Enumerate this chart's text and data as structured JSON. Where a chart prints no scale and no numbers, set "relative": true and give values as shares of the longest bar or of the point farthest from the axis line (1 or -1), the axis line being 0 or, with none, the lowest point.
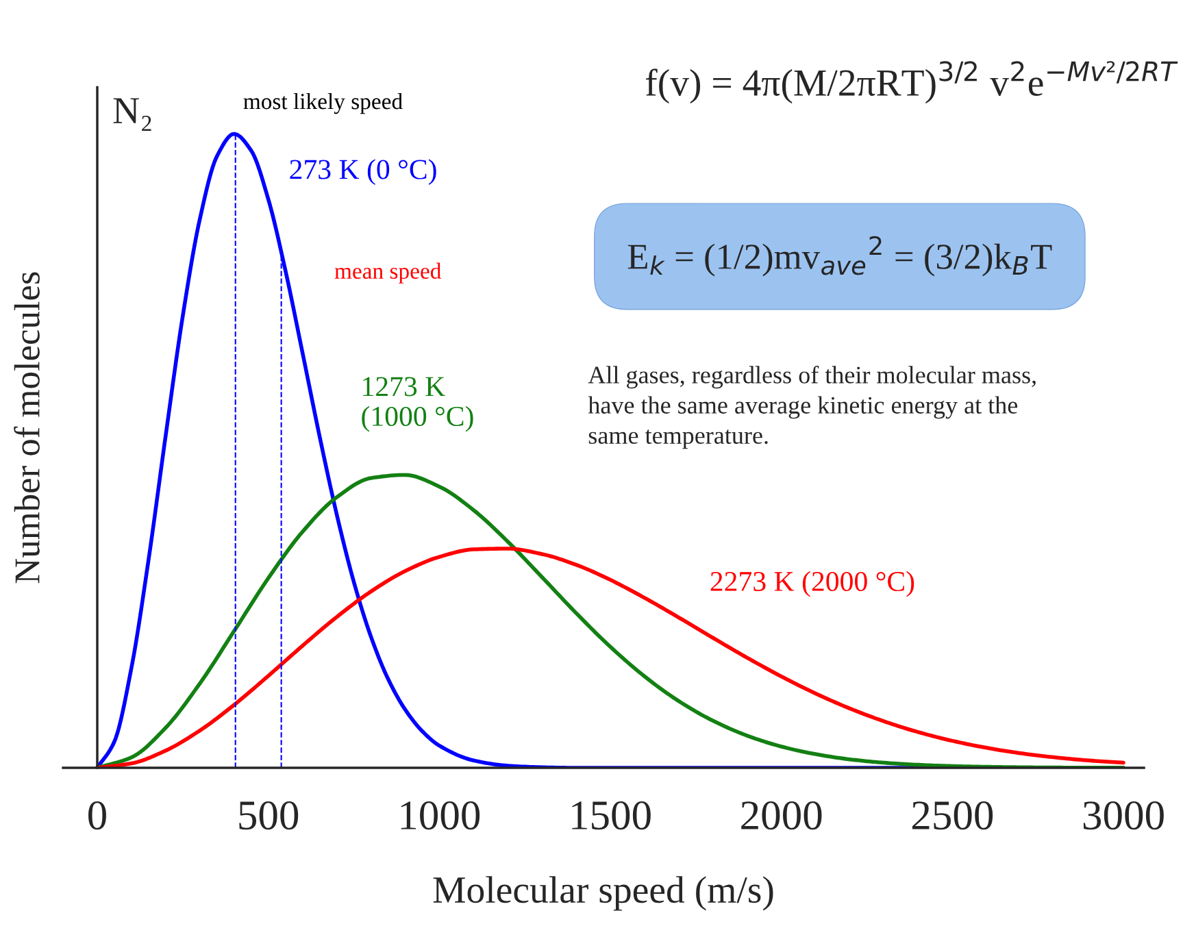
{
  "chart_data": {
    "type": "line",
    "title": "N₂",
    "xlabel": "Molecular speed (m/s)",
    "ylabel": "Number of molecules",
    "relative": true,
    "x": [
      0,
      100,
      200,
      300,
      400,
      500,
      600,
      700,
      800,
      900,
      1000,
      1100,
      1200,
      1300,
      1400,
      1500,
      1600,
      1700,
      1800,
      1900,
      2000,
      2100,
      2200,
      2300,
      2400,
      2500,
      2600,
      2700,
      2800,
      2900,
      3000
    ],
    "series": [
      {
        "name": "273 K (0 °C)",
        "color": "#0000ff",
        "x": [
          0,
          50,
          100,
          150,
          200,
          250,
          300,
          350,
          400,
          450,
          500,
          550,
          600,
          650,
          700,
          750,
          800,
          850,
          900,
          950,
          1000,
          1100,
          1200,
          1300,
          1400,
          1500,
          1600,
          1700,
          1800,
          1900,
          2000,
          2100,
          2200,
          2300,
          2400,
          2500
        ],
        "values": [
          0,
          0.0413,
          0.158,
          0.3284,
          0.524,
          0.7128,
          0.866,
          0.9649,
          1.0,
          0.9737,
          0.897,
          0.7848,
          0.655,
          0.5229,
          0.4,
          0.2934,
          0.207,
          0.1404,
          0.092,
          0.0578,
          0.035,
          0.0116,
          0.0033,
          0.0008,
          0,
          0,
          0,
          0,
          0,
          0,
          0,
          0,
          0,
          0,
          0,
          0
        ]
      },
      {
        "name": "1273 K\n(1000 °C)",
        "color": "#138013",
        "values": [
          0,
          0.0164,
          0.0632,
          0.1331,
          0.2157,
          0.2991,
          0.3723,
          0.4268,
          0.4571,
          0.462,
          0.4436,
          0.4066,
          0.3569,
          0.3009,
          0.2441,
          0.1909,
          0.1442,
          0.1052,
          0.0742,
          0.0507,
          0.0335,
          0.0215,
          0.0133,
          0.008,
          0.0047,
          0.0027,
          0.0015,
          0.0008,
          0.0004,
          0.0002,
          0.0001
        ]
      },
      {
        "name": "2273 K (2000 °C)",
        "color": "#ff0000",
        "values": [
          0,
          0.0069,
          0.0271,
          0.0588,
          0.0992,
          0.145,
          0.1925,
          0.2379,
          0.2781,
          0.3103,
          0.3327,
          0.3446,
          0.3458,
          0.3372,
          0.3203,
          0.2965,
          0.2681,
          0.2371,
          0.205,
          0.1736,
          0.1441,
          0.1172,
          0.0936,
          0.0733,
          0.0563,
          0.0425,
          0.0315,
          0.0229,
          0.0164,
          0.0115,
          0.008
        ]
      }
    ],
    "xlim": [
      -100,
      3060
    ],
    "xticks": [
      0,
      500,
      1000,
      1500,
      2000,
      2500,
      3000
    ],
    "ref_lines": [
      {
        "axis": "x",
        "value": 404,
        "color": "#0000ff",
        "line_style": "dashed"
      },
      {
        "axis": "x",
        "value": 538,
        "color": "#0000ff",
        "line_style": "dashed"
      }
    ],
    "annotations": [
      "f(v) = 4π(M/2πRT)$^{3/2}$ v$^{2}$e$^{−Mv²/2RT}$",
      "E$_{k}$ = (1/2)mv$_{ave}$$^{2}$ = (3/2)k$_{B}$T",
      "All gases, regardless of their molecular mass,\nhave the same average kinetic energy at the\nsame temperature.",
      {
        "text": "most likely speed",
        "x": 404,
        "y": 1.0
      },
      {
        "text": "mean speed",
        "x": 538,
        "y": 0.83
      }
    ]
  }
}
